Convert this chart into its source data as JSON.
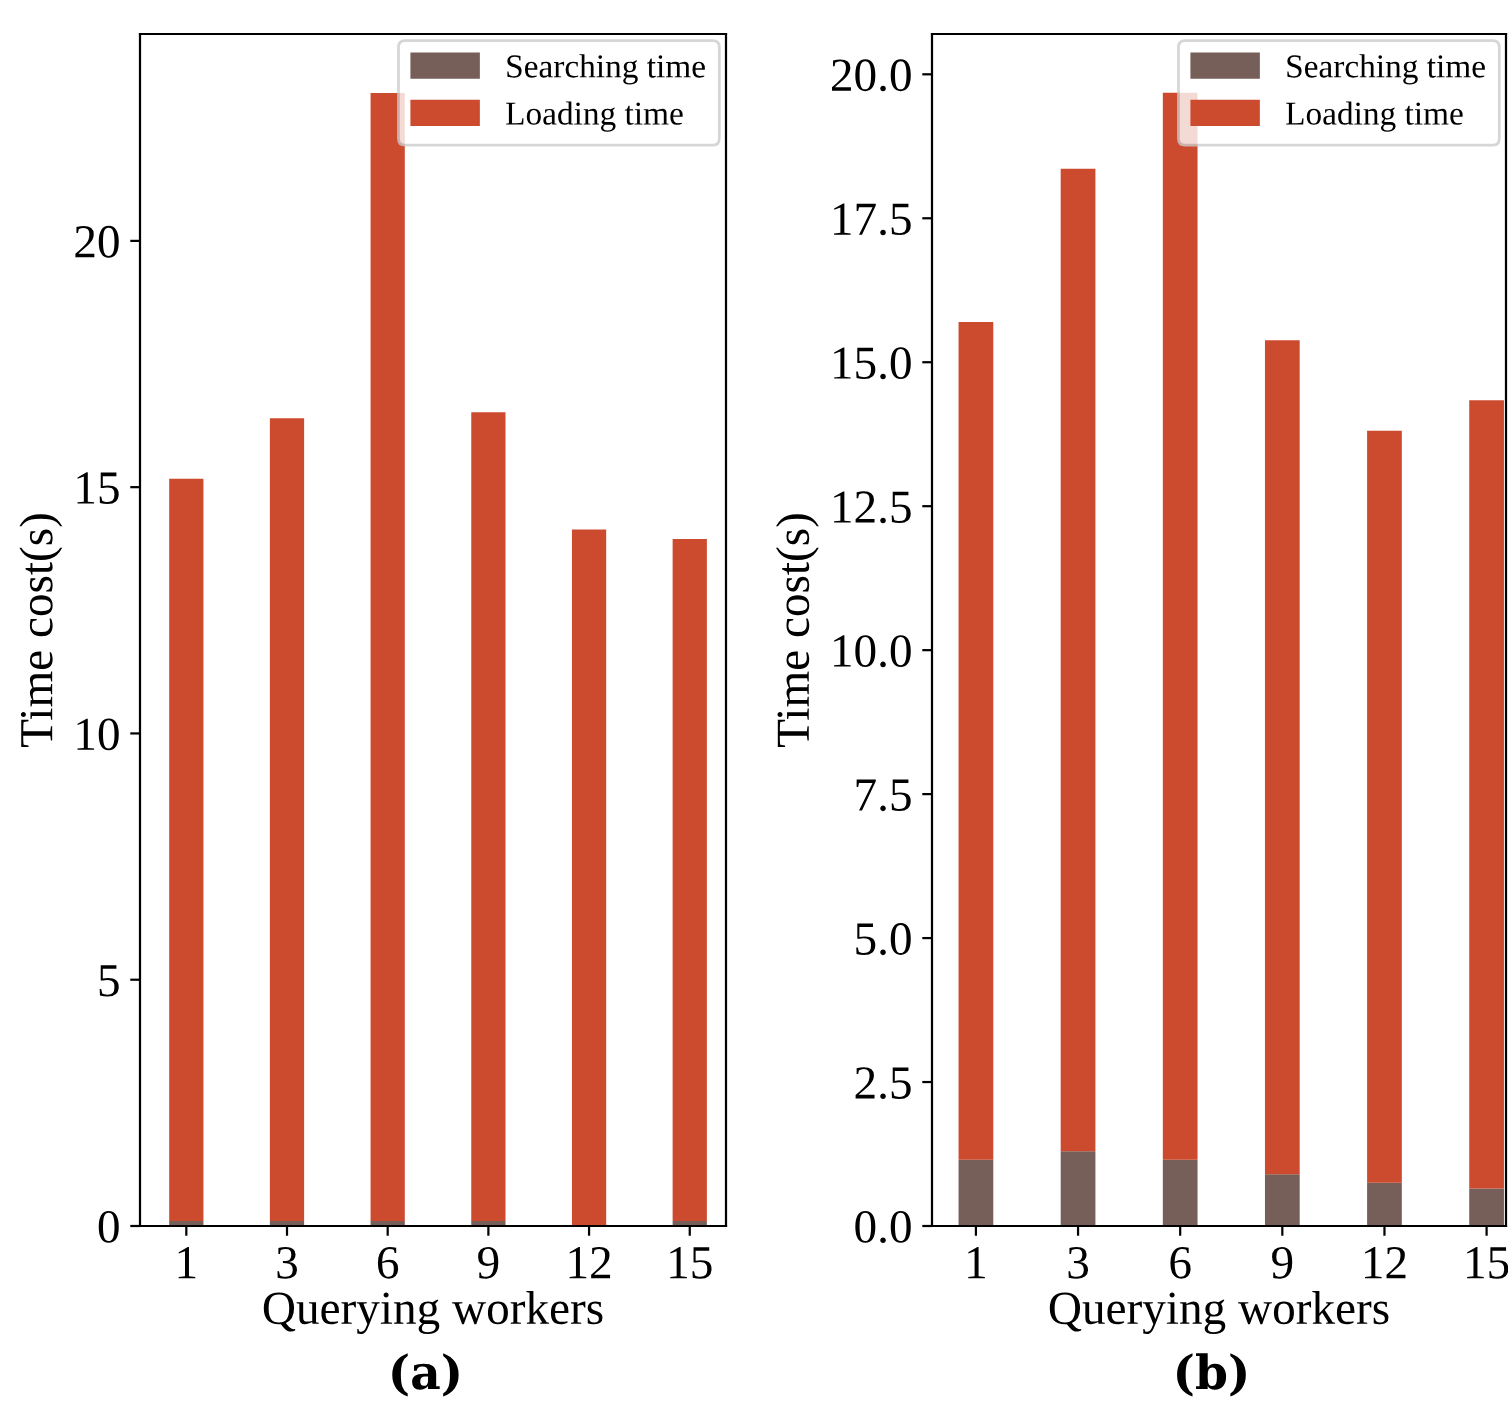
{
  "chart_data": [
    {
      "type": "bar",
      "stacked": true,
      "categories": [
        "1",
        "3",
        "6",
        "9",
        "12",
        "15"
      ],
      "xlabel": "Querying workers",
      "ylabel": "Time cost(s)",
      "ylim": [
        0,
        24.2
      ],
      "yticks": [
        0,
        5,
        10,
        15,
        20
      ],
      "legend": "top right",
      "annotations": [
        "(a)"
      ],
      "series": [
        {
          "name": "Searching time",
          "color": "#765f58",
          "values": [
            0.1,
            0.1,
            0.1,
            0.1,
            null,
            0.1
          ]
        },
        {
          "name": "Loading time",
          "color": "#cc4a2e",
          "values": [
            15.07,
            16.3,
            22.9,
            16.42,
            14.14,
            13.85
          ]
        }
      ]
    },
    {
      "type": "bar",
      "stacked": true,
      "categories": [
        "1",
        "3",
        "6",
        "9",
        "12",
        "15"
      ],
      "xlabel": "Querying workers",
      "ylabel": "Time cost(s)",
      "ylim": [
        0,
        20.7
      ],
      "yticks": [
        {
          "value": 0,
          "label": "0.0"
        },
        2.5,
        {
          "value": 5,
          "label": "5.0"
        },
        7.5,
        {
          "value": 10,
          "label": "10.0"
        },
        12.5,
        {
          "value": 15,
          "label": "15.0"
        },
        17.5,
        {
          "value": 20,
          "label": "20.0"
        }
      ],
      "legend": "top right",
      "annotations": [
        "(b)"
      ],
      "series": [
        {
          "name": "Searching time",
          "color": "#765f58",
          "values": [
            1.15,
            1.3,
            1.15,
            0.9,
            0.75,
            0.65
          ]
        },
        {
          "name": "Loading time",
          "color": "#cc4a2e",
          "values": [
            14.55,
            17.06,
            18.53,
            14.48,
            13.06,
            13.69
          ]
        }
      ]
    }
  ]
}
